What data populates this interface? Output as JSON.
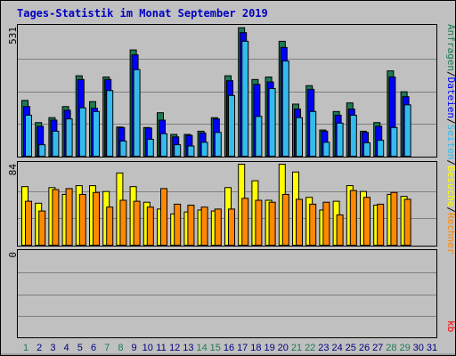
{
  "chart_data": {
    "type": "bar",
    "title": "Tages-Statistik im Monat September 2019",
    "colors": {
      "background": "#c0c0c0",
      "title": "#0000c0",
      "hits": "#1e7a52",
      "files": "#0000ff",
      "pages": "#33bbee",
      "visits": "#ffff00",
      "sites": "#ff8800",
      "kbytes": "#ff0000",
      "weekend_label": "#1e7a52",
      "weekday_label": "#000080"
    },
    "legend": {
      "top": [
        "Anfragen",
        "/",
        "Dateien",
        "/",
        "Seiten",
        "/",
        "Besuche",
        "/",
        "Rechner"
      ],
      "bottom": "kb"
    },
    "days": [
      "1",
      "2",
      "3",
      "4",
      "5",
      "6",
      "7",
      "8",
      "9",
      "10",
      "11",
      "12",
      "13",
      "14",
      "15",
      "16",
      "17",
      "18",
      "19",
      "20",
      "21",
      "22",
      "23",
      "24",
      "25",
      "26",
      "27",
      "28",
      "29",
      "30",
      "31"
    ],
    "weekend_days": [
      "1",
      "7",
      "8",
      "14",
      "15",
      "21",
      "22",
      "28",
      "29"
    ],
    "panel_requests": {
      "ymax_label": "531",
      "ylim": [
        0,
        531
      ],
      "series": [
        {
          "name": "Anfragen",
          "values": [
            230,
            140,
            160,
            205,
            330,
            225,
            325,
            122,
            435,
            120,
            180,
            92,
            92,
            105,
            160,
            330,
            525,
            315,
            325,
            470,
            215,
            290,
            110,
            185,
            220,
            105,
            140,
            350,
            265,
            null,
            null
          ]
        },
        {
          "name": "Dateien",
          "values": [
            205,
            125,
            150,
            190,
            315,
            198,
            315,
            120,
            415,
            118,
            150,
            82,
            88,
            98,
            155,
            310,
            505,
            295,
            305,
            445,
            195,
            275,
            105,
            170,
            195,
            100,
            125,
            325,
            245,
            null,
            null
          ]
        },
        {
          "name": "Seiten",
          "values": [
            170,
            50,
            105,
            155,
            200,
            185,
            270,
            65,
            355,
            72,
            95,
            50,
            45,
            60,
            100,
            250,
            470,
            165,
            278,
            390,
            160,
            185,
            60,
            138,
            170,
            58,
            68,
            120,
            212,
            null,
            null
          ]
        }
      ]
    },
    "panel_visits": {
      "ymax_label": "84",
      "ylim": [
        0,
        84
      ],
      "series": [
        {
          "name": "Besuche",
          "values": [
            61,
            44,
            60,
            53,
            62,
            62,
            56,
            75,
            61,
            45,
            38,
            33,
            35,
            37,
            36,
            60,
            84,
            67,
            47,
            84,
            76,
            50,
            37,
            46,
            62,
            56,
            42,
            53,
            51,
            null,
            null
          ]
        },
        {
          "name": "Rechner",
          "values": [
            46,
            36,
            58,
            59,
            53,
            55,
            40,
            47,
            46,
            40,
            59,
            43,
            42,
            40,
            38,
            38,
            49,
            47,
            45,
            53,
            48,
            43,
            45,
            32,
            57,
            50,
            43,
            55,
            48,
            null,
            null
          ]
        }
      ]
    },
    "panel_kb": {
      "ymax_label": "0",
      "ylim": [
        0,
        1
      ],
      "series": [
        {
          "name": "kb",
          "values": [
            0,
            0,
            0,
            0,
            0,
            0,
            0,
            0,
            0,
            0,
            0,
            0,
            0,
            0,
            0,
            0,
            0,
            0,
            0,
            0,
            0,
            0,
            0,
            0,
            0,
            0,
            0,
            0,
            0,
            null,
            null
          ]
        }
      ]
    }
  }
}
